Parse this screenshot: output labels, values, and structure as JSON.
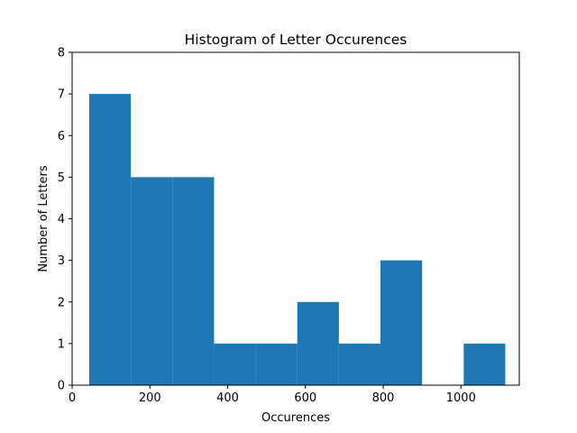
{
  "chart_data": {
    "type": "bar",
    "title": "Histogram of Letter Occurences",
    "xlabel": "Occurences",
    "ylabel": "Number of Letters",
    "xlim": [
      0,
      1150
    ],
    "ylim": [
      0,
      8
    ],
    "xticks": [
      0,
      200,
      400,
      600,
      800,
      1000
    ],
    "yticks": [
      0,
      1,
      2,
      3,
      4,
      5,
      6,
      7,
      8
    ],
    "bins": [
      {
        "x0": 44,
        "x1": 151,
        "count": 7
      },
      {
        "x0": 151,
        "x1": 258,
        "count": 5
      },
      {
        "x0": 258,
        "x1": 365,
        "count": 5
      },
      {
        "x0": 365,
        "x1": 472,
        "count": 1
      },
      {
        "x0": 472,
        "x1": 579,
        "count": 1
      },
      {
        "x0": 579,
        "x1": 686,
        "count": 2
      },
      {
        "x0": 686,
        "x1": 793,
        "count": 1
      },
      {
        "x0": 793,
        "x1": 900,
        "count": 3
      },
      {
        "x0": 900,
        "x1": 1007,
        "count": 0
      },
      {
        "x0": 1007,
        "x1": 1114,
        "count": 1
      }
    ],
    "bar_color": "#1f77b4",
    "grid": false,
    "legend": "none"
  }
}
